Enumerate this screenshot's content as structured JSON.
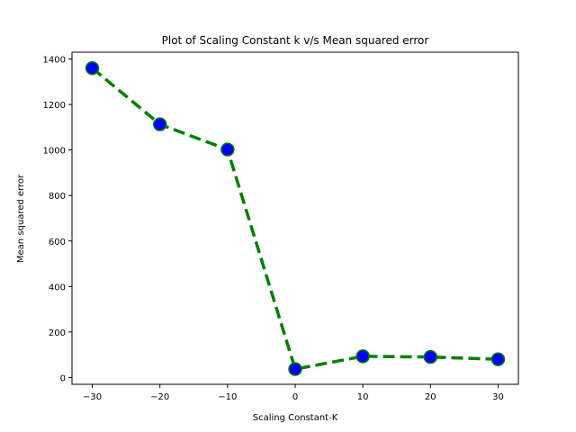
{
  "chart_data": {
    "type": "line",
    "title": "Plot of Scaling Constant k v/s Mean squared error",
    "xlabel": "Scaling Constant-K",
    "ylabel": "Mean squared error",
    "x": [
      -30,
      -20,
      -10,
      0,
      10,
      20,
      30
    ],
    "series": [
      {
        "values": [
          1360,
          1113,
          1002,
          37,
          93,
          90,
          80
        ]
      }
    ],
    "xlim": [
      -33,
      33
    ],
    "ylim": [
      -30,
      1430
    ],
    "xticks": [
      -30,
      -20,
      -10,
      0,
      10,
      20,
      30
    ],
    "xtick_labels": [
      "−30",
      "−20",
      "−10",
      "0",
      "10",
      "20",
      "30"
    ],
    "yticks": [
      0,
      200,
      400,
      600,
      800,
      1000,
      1200,
      1400
    ],
    "ytick_labels": [
      "0",
      "200",
      "400",
      "600",
      "800",
      "1000",
      "1200",
      "1400"
    ],
    "grid": false,
    "line_style": "dashed",
    "line_color": "#008000",
    "marker_face_color": "#0000ff",
    "marker_edge_color": "#008000"
  }
}
